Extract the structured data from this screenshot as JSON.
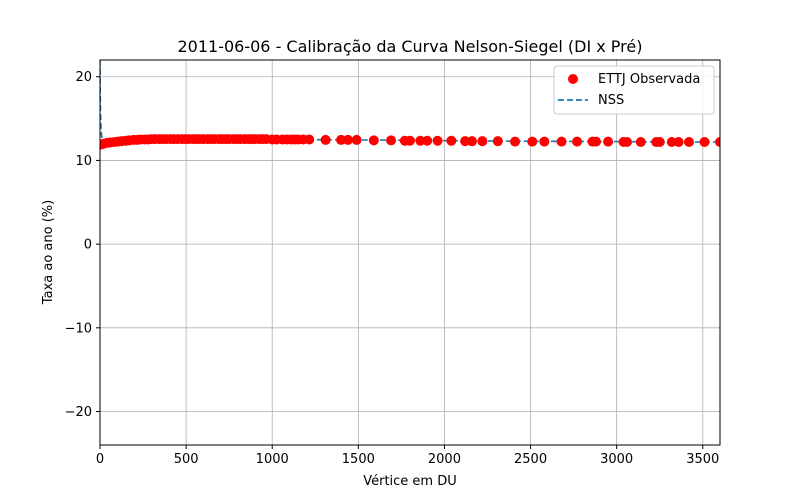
{
  "chart_data": {
    "type": "scatter",
    "title": "2011-06-06 - Calibração da Curva Nelson-Siegel (DI x Pré)",
    "xlabel": "Vértice em DU",
    "ylabel": "Taxa ao ano (%)",
    "xlim": [
      0,
      3600
    ],
    "ylim": [
      -24,
      22
    ],
    "xticks": [
      0,
      500,
      1000,
      1500,
      2000,
      2500,
      3000,
      3500
    ],
    "yticks": [
      -20,
      -10,
      0,
      10,
      20
    ],
    "xtick_labels": [
      "0",
      "500",
      "1000",
      "1500",
      "2000",
      "2500",
      "3000",
      "3500"
    ],
    "ytick_labels": [
      "−20",
      "−10",
      "0",
      "10",
      "20"
    ],
    "grid": true,
    "legend_position": "top-right",
    "series": [
      {
        "name": "ETTJ Observada",
        "kind": "scatter",
        "color": "#ff0000",
        "x": [
          5,
          20,
          40,
          60,
          85,
          105,
          125,
          150,
          170,
          195,
          215,
          235,
          260,
          280,
          300,
          320,
          345,
          365,
          385,
          410,
          430,
          450,
          475,
          495,
          515,
          540,
          560,
          580,
          600,
          625,
          645,
          665,
          690,
          710,
          730,
          750,
          775,
          795,
          815,
          840,
          860,
          880,
          900,
          925,
          945,
          965,
          1000,
          1025,
          1060,
          1085,
          1110,
          1130,
          1150,
          1180,
          1215,
          1310,
          1400,
          1440,
          1490,
          1590,
          1690,
          1770,
          1800,
          1860,
          1900,
          1960,
          2040,
          2120,
          2160,
          2220,
          2310,
          2410,
          2510,
          2580,
          2680,
          2770,
          2860,
          2880,
          2950,
          3040,
          3060,
          3140,
          3230,
          3250,
          3320,
          3360,
          3420,
          3510,
          3600
        ],
        "y": [
          11.9,
          12.0,
          12.1,
          12.15,
          12.2,
          12.25,
          12.3,
          12.35,
          12.4,
          12.45,
          12.45,
          12.5,
          12.5,
          12.5,
          12.55,
          12.55,
          12.55,
          12.55,
          12.55,
          12.55,
          12.55,
          12.55,
          12.55,
          12.55,
          12.55,
          12.55,
          12.55,
          12.55,
          12.55,
          12.55,
          12.55,
          12.55,
          12.55,
          12.55,
          12.55,
          12.55,
          12.55,
          12.55,
          12.55,
          12.55,
          12.55,
          12.55,
          12.55,
          12.55,
          12.55,
          12.55,
          12.5,
          12.5,
          12.5,
          12.5,
          12.5,
          12.5,
          12.5,
          12.5,
          12.5,
          12.45,
          12.45,
          12.45,
          12.45,
          12.4,
          12.4,
          12.35,
          12.35,
          12.35,
          12.35,
          12.35,
          12.35,
          12.3,
          12.3,
          12.3,
          12.3,
          12.25,
          12.25,
          12.25,
          12.25,
          12.25,
          12.25,
          12.25,
          12.25,
          12.2,
          12.2,
          12.2,
          12.2,
          12.2,
          12.2,
          12.2,
          12.2,
          12.2,
          12.2
        ]
      },
      {
        "name": "NSS",
        "kind": "line",
        "style": "dashed",
        "color": "#1f77b4",
        "x": [
          0,
          1,
          3,
          6,
          10,
          20,
          40,
          70,
          100,
          150,
          200,
          300,
          400,
          500,
          700,
          900,
          1100,
          1300,
          1500,
          1800,
          2100,
          2400,
          2700,
          3000,
          3300,
          3600
        ],
        "y": [
          22.0,
          18.5,
          15.5,
          13.8,
          12.8,
          12.1,
          12.0,
          12.1,
          12.2,
          12.35,
          12.45,
          12.55,
          12.6,
          12.6,
          12.6,
          12.55,
          12.5,
          12.48,
          12.45,
          12.4,
          12.35,
          12.3,
          12.28,
          12.25,
          12.22,
          12.2
        ]
      }
    ]
  }
}
